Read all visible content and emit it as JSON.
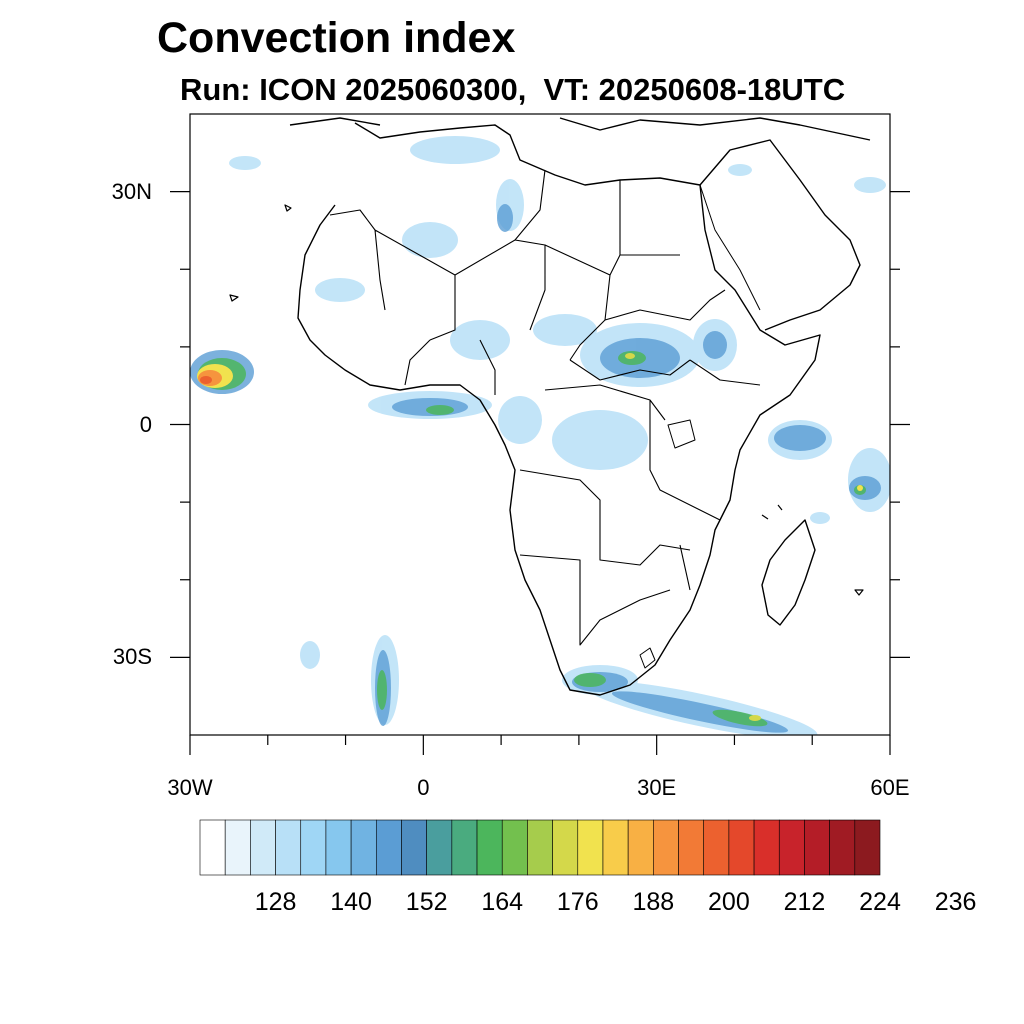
{
  "title": "Convection index",
  "subtitle": "Run: ICON 2025060300,  VT: 20250608-18UTC",
  "map": {
    "lon_range": [
      -30,
      60
    ],
    "lat_range": [
      -40,
      40
    ],
    "lat_ticks": [
      {
        "value": 30,
        "label": "30N"
      },
      {
        "value": 0,
        "label": "0"
      },
      {
        "value": -30,
        "label": "30S"
      }
    ],
    "lon_ticks": [
      {
        "value": -30,
        "label": "30W"
      },
      {
        "value": 0,
        "label": "0"
      },
      {
        "value": 30,
        "label": "30E"
      },
      {
        "value": 60,
        "label": "60E"
      }
    ]
  },
  "colorbar": {
    "colors": [
      "#ffffff",
      "#e9f4fb",
      "#d0eaf8",
      "#b8e0f7",
      "#9fd6f5",
      "#86c7ee",
      "#70b3e2",
      "#5b9dd4",
      "#4f8dc0",
      "#4a9e9e",
      "#4aab7f",
      "#4cb65c",
      "#73c04e",
      "#a6cc4c",
      "#d4d84a",
      "#f1e24e",
      "#f8cc4a",
      "#f8b044",
      "#f6943e",
      "#f27a36",
      "#ec612f",
      "#e4482b",
      "#d92f2a",
      "#c8232b",
      "#b41d27",
      "#a01b23",
      "#8c1a1f"
    ],
    "tick_labels": [
      "128",
      "140",
      "152",
      "164",
      "176",
      "188",
      "200",
      "212",
      "224",
      "236"
    ]
  }
}
